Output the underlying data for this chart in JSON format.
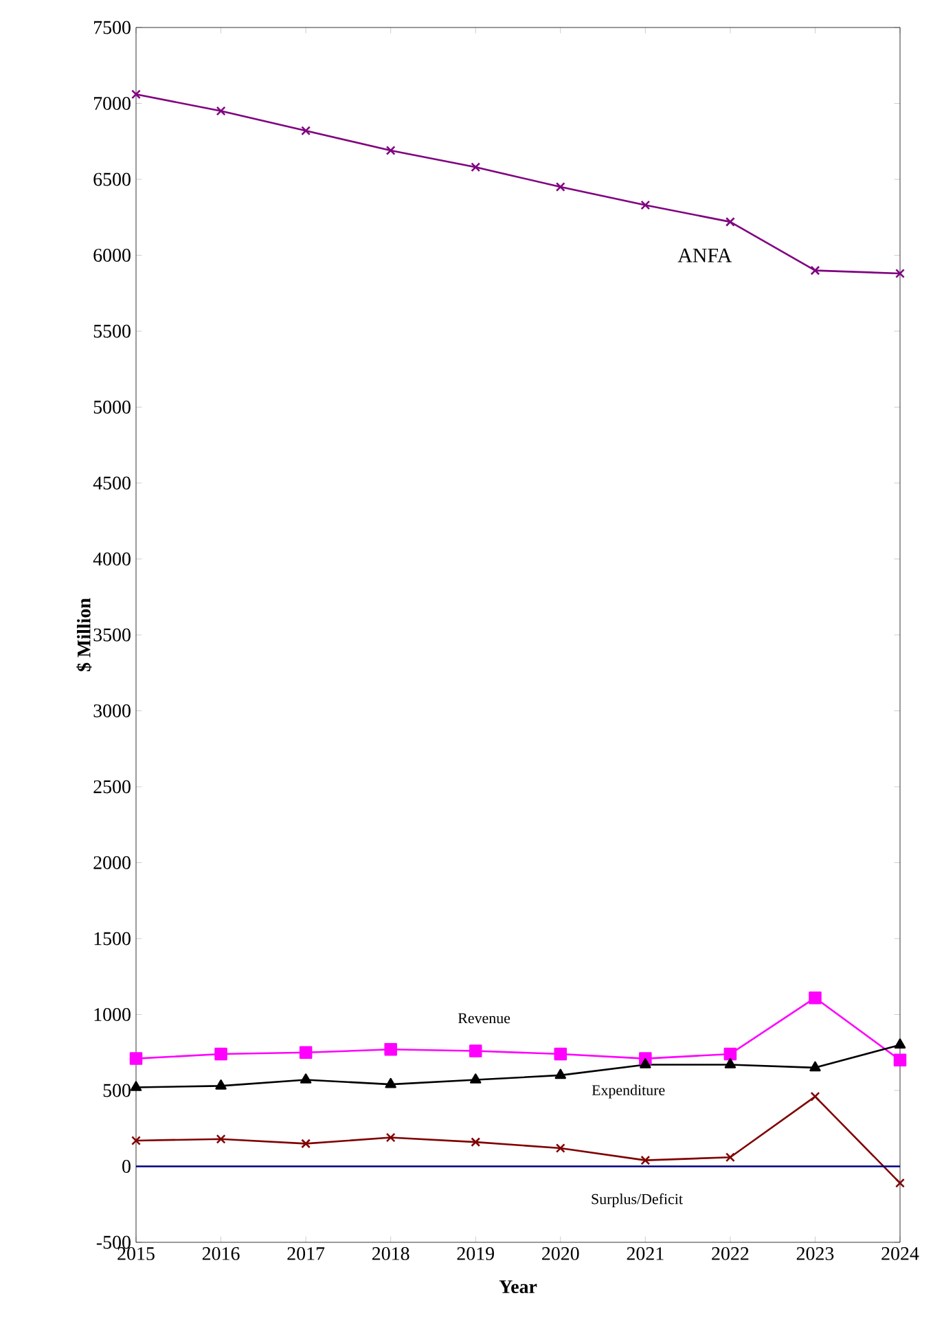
{
  "chart_data": {
    "type": "line",
    "xlabel": "Year",
    "ylabel": "$ Million",
    "x": [
      2015,
      2016,
      2017,
      2018,
      2019,
      2020,
      2021,
      2022,
      2023,
      2024
    ],
    "series": [
      {
        "name": "ANFA",
        "color": "#800080",
        "marker": "cross",
        "values": [
          7060,
          6950,
          6820,
          6690,
          6580,
          6450,
          6330,
          6220,
          5900,
          5880
        ]
      },
      {
        "name": "Revenue",
        "color": "#ff00ff",
        "marker": "square",
        "values": [
          710,
          740,
          750,
          770,
          760,
          740,
          710,
          740,
          1110,
          700
        ]
      },
      {
        "name": "Expenditure",
        "color": "#000000",
        "marker": "triangle",
        "values": [
          520,
          530,
          570,
          540,
          570,
          600,
          670,
          670,
          650,
          800
        ]
      },
      {
        "name": "Surplus/Deficit",
        "color": "#800000",
        "marker": "cross",
        "values": [
          170,
          180,
          150,
          190,
          160,
          120,
          40,
          60,
          460,
          -110
        ]
      }
    ],
    "xlim": [
      2015,
      2024
    ],
    "xticks": [
      2015,
      2016,
      2017,
      2018,
      2019,
      2020,
      2021,
      2022,
      2023,
      2024
    ],
    "ylim": [
      -500,
      7500
    ],
    "yticks": [
      -500,
      0,
      500,
      1000,
      1500,
      2000,
      2500,
      3000,
      3500,
      4000,
      4500,
      5000,
      5500,
      6000,
      6500,
      7000,
      7500
    ],
    "ref_lines": [
      {
        "axis": "y",
        "value": 0,
        "color": "#000080"
      }
    ],
    "grid": false,
    "legend": false,
    "line_style": "solid"
  }
}
